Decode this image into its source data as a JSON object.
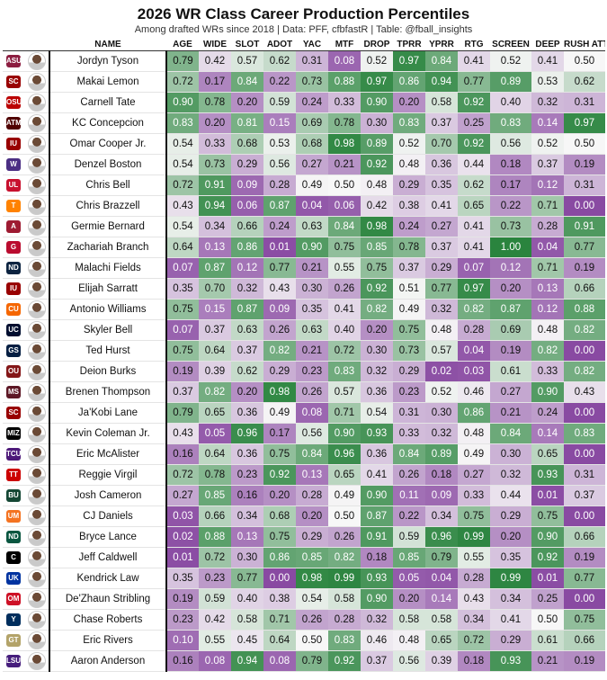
{
  "title": "2026 WR Class Career Production Percentiles",
  "subtitle": "Among drafted WRs since 2018 | Data: PFF, cfbfastR | Table: @fball_insights",
  "chart_data": {
    "type": "table",
    "columns": [
      "NAME",
      "AGE",
      "WIDE",
      "SLOT",
      "ADOT",
      "YAC",
      "MTF",
      "DROP",
      "TPRR",
      "YPRR",
      "RTG",
      "SCREEN",
      "DEEP",
      "RUSH ATT"
    ],
    "rows": [
      {
        "name": "Jordyn Tyson",
        "logo": "ASU",
        "logo_color": "#8c1d40",
        "values": [
          0.79,
          0.42,
          0.57,
          0.62,
          0.31,
          0.08,
          0.52,
          0.97,
          0.84,
          0.41,
          0.52,
          0.41,
          0.5
        ]
      },
      {
        "name": "Makai Lemon",
        "logo": "SC",
        "logo_color": "#990000",
        "values": [
          0.72,
          0.17,
          0.84,
          0.22,
          0.73,
          0.88,
          0.97,
          0.86,
          0.94,
          0.77,
          0.89,
          0.53,
          0.62
        ]
      },
      {
        "name": "Carnell Tate",
        "logo": "OSU",
        "logo_color": "#bb0000",
        "values": [
          0.9,
          0.78,
          0.2,
          0.59,
          0.24,
          0.33,
          0.9,
          0.2,
          0.58,
          0.92,
          0.4,
          0.32,
          0.31
        ]
      },
      {
        "name": "KC Concepcion",
        "logo": "ATM",
        "logo_color": "#500000",
        "values": [
          0.83,
          0.2,
          0.81,
          0.15,
          0.69,
          0.78,
          0.3,
          0.83,
          0.37,
          0.25,
          0.83,
          0.14,
          0.97
        ]
      },
      {
        "name": "Omar Cooper Jr.",
        "logo": "IU",
        "logo_color": "#990000",
        "values": [
          0.54,
          0.33,
          0.68,
          0.53,
          0.68,
          0.98,
          0.89,
          0.52,
          0.7,
          0.92,
          0.56,
          0.52,
          0.5
        ]
      },
      {
        "name": "Denzel Boston",
        "logo": "W",
        "logo_color": "#4b2e83",
        "values": [
          0.54,
          0.73,
          0.29,
          0.56,
          0.27,
          0.21,
          0.92,
          0.48,
          0.36,
          0.44,
          0.18,
          0.37,
          0.19
        ]
      },
      {
        "name": "Chris Bell",
        "logo": "UL",
        "logo_color": "#c8102e",
        "values": [
          0.72,
          0.91,
          0.09,
          0.28,
          0.49,
          0.5,
          0.48,
          0.29,
          0.35,
          0.62,
          0.17,
          0.12,
          0.31
        ]
      },
      {
        "name": "Chris Brazzell",
        "logo": "T",
        "logo_color": "#ff8200",
        "values": [
          0.43,
          0.94,
          0.06,
          0.87,
          0.04,
          0.06,
          0.42,
          0.38,
          0.41,
          0.65,
          0.22,
          0.71,
          0.0
        ]
      },
      {
        "name": "Germie Bernard",
        "logo": "A",
        "logo_color": "#9e1b32",
        "values": [
          0.54,
          0.34,
          0.66,
          0.24,
          0.63,
          0.84,
          0.98,
          0.24,
          0.27,
          0.41,
          0.73,
          0.28,
          0.91
        ]
      },
      {
        "name": "Zachariah Branch",
        "logo": "G",
        "logo_color": "#ba0c2f",
        "values": [
          0.64,
          0.13,
          0.86,
          0.01,
          0.9,
          0.75,
          0.85,
          0.78,
          0.37,
          0.41,
          1.0,
          0.04,
          0.77
        ]
      },
      {
        "name": "Malachi Fields",
        "logo": "ND",
        "logo_color": "#0c2340",
        "values": [
          0.07,
          0.87,
          0.12,
          0.77,
          0.21,
          0.55,
          0.75,
          0.37,
          0.29,
          0.07,
          0.12,
          0.71,
          0.19
        ]
      },
      {
        "name": "Elijah Sarratt",
        "logo": "IU",
        "logo_color": "#990000",
        "values": [
          0.35,
          0.7,
          0.32,
          0.43,
          0.3,
          0.26,
          0.92,
          0.51,
          0.77,
          0.97,
          0.2,
          0.13,
          0.66
        ]
      },
      {
        "name": "Antonio Williams",
        "logo": "CU",
        "logo_color": "#f56600",
        "values": [
          0.75,
          0.15,
          0.87,
          0.09,
          0.35,
          0.41,
          0.82,
          0.49,
          0.32,
          0.82,
          0.87,
          0.12,
          0.88
        ]
      },
      {
        "name": "Skyler Bell",
        "logo": "UC",
        "logo_color": "#000e2f",
        "values": [
          0.07,
          0.37,
          0.63,
          0.26,
          0.63,
          0.4,
          0.2,
          0.75,
          0.48,
          0.28,
          0.69,
          0.48,
          0.82
        ]
      },
      {
        "name": "Ted Hurst",
        "logo": "GS",
        "logo_color": "#041e42",
        "values": [
          0.75,
          0.64,
          0.37,
          0.82,
          0.21,
          0.72,
          0.3,
          0.73,
          0.57,
          0.04,
          0.19,
          0.82,
          0.0
        ]
      },
      {
        "name": "Deion Burks",
        "logo": "OU",
        "logo_color": "#841617",
        "values": [
          0.19,
          0.39,
          0.62,
          0.29,
          0.23,
          0.83,
          0.32,
          0.29,
          0.02,
          0.03,
          0.61,
          0.33,
          0.82
        ]
      },
      {
        "name": "Brenen Thompson",
        "logo": "MS",
        "logo_color": "#5d1725",
        "values": [
          0.37,
          0.82,
          0.2,
          0.98,
          0.26,
          0.57,
          0.36,
          0.23,
          0.52,
          0.46,
          0.27,
          0.9,
          0.43
        ]
      },
      {
        "name": "Ja'Kobi Lane",
        "logo": "SC",
        "logo_color": "#990000",
        "values": [
          0.79,
          0.65,
          0.36,
          0.49,
          0.08,
          0.71,
          0.54,
          0.31,
          0.3,
          0.86,
          0.21,
          0.24,
          0.0
        ]
      },
      {
        "name": "Kevin Coleman Jr.",
        "logo": "MIZ",
        "logo_color": "#000000",
        "values": [
          0.43,
          0.05,
          0.96,
          0.17,
          0.56,
          0.9,
          0.93,
          0.33,
          0.32,
          0.48,
          0.84,
          0.14,
          0.83
        ]
      },
      {
        "name": "Eric McAlister",
        "logo": "TCU",
        "logo_color": "#4d1979",
        "values": [
          0.16,
          0.64,
          0.36,
          0.75,
          0.84,
          0.96,
          0.36,
          0.84,
          0.89,
          0.49,
          0.3,
          0.65,
          0.0
        ]
      },
      {
        "name": "Reggie Virgil",
        "logo": "TT",
        "logo_color": "#cc0000",
        "values": [
          0.72,
          0.78,
          0.23,
          0.92,
          0.13,
          0.65,
          0.41,
          0.26,
          0.18,
          0.27,
          0.32,
          0.93,
          0.31
        ]
      },
      {
        "name": "Josh Cameron",
        "logo": "BU",
        "logo_color": "#154734",
        "values": [
          0.27,
          0.85,
          0.16,
          0.2,
          0.28,
          0.49,
          0.9,
          0.11,
          0.09,
          0.33,
          0.44,
          0.01,
          0.37
        ]
      },
      {
        "name": "CJ Daniels",
        "logo": "UM",
        "logo_color": "#f47321",
        "values": [
          0.03,
          0.66,
          0.34,
          0.68,
          0.2,
          0.5,
          0.87,
          0.22,
          0.34,
          0.75,
          0.29,
          0.75,
          0.0
        ]
      },
      {
        "name": "Bryce Lance",
        "logo": "ND",
        "logo_color": "#0a5640",
        "values": [
          0.02,
          0.88,
          0.13,
          0.75,
          0.29,
          0.26,
          0.91,
          0.59,
          0.96,
          0.99,
          0.2,
          0.9,
          0.66
        ]
      },
      {
        "name": "Jeff Caldwell",
        "logo": "C",
        "logo_color": "#000000",
        "values": [
          0.01,
          0.72,
          0.3,
          0.86,
          0.85,
          0.82,
          0.18,
          0.85,
          0.79,
          0.55,
          0.35,
          0.92,
          0.19
        ]
      },
      {
        "name": "Kendrick Law",
        "logo": "UK",
        "logo_color": "#0033a0",
        "values": [
          0.35,
          0.23,
          0.77,
          0.0,
          0.98,
          0.99,
          0.93,
          0.05,
          0.04,
          0.28,
          0.99,
          0.01,
          0.77
        ]
      },
      {
        "name": "De'Zhaun Stribling",
        "logo": "OM",
        "logo_color": "#ce1126",
        "values": [
          0.19,
          0.59,
          0.4,
          0.38,
          0.54,
          0.58,
          0.9,
          0.2,
          0.14,
          0.43,
          0.34,
          0.25,
          0.0
        ]
      },
      {
        "name": "Chase Roberts",
        "logo": "Y",
        "logo_color": "#002e5d",
        "values": [
          0.23,
          0.42,
          0.58,
          0.71,
          0.26,
          0.28,
          0.32,
          0.58,
          0.58,
          0.34,
          0.41,
          0.5,
          0.75
        ]
      },
      {
        "name": "Eric Rivers",
        "logo": "GT",
        "logo_color": "#b3a369",
        "values": [
          0.1,
          0.55,
          0.45,
          0.64,
          0.5,
          0.83,
          0.46,
          0.48,
          0.65,
          0.72,
          0.29,
          0.61,
          0.66
        ]
      },
      {
        "name": "Aaron Anderson",
        "logo": "LSU",
        "logo_color": "#461d7c",
        "values": [
          0.16,
          0.08,
          0.94,
          0.08,
          0.79,
          0.92,
          0.37,
          0.56,
          0.39,
          0.18,
          0.93,
          0.21,
          0.19
        ]
      }
    ]
  }
}
